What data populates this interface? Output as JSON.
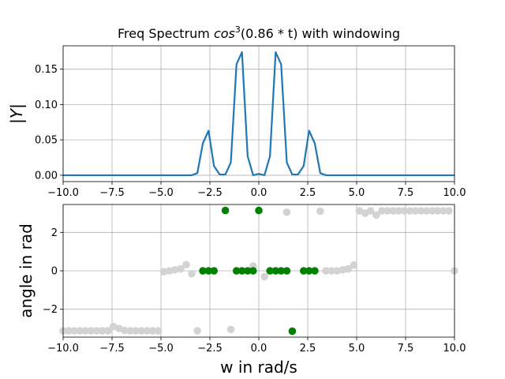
{
  "chart_data": [
    {
      "type": "line",
      "title": "Freq Spectrum cos³(0.86 * t) with windowing",
      "title_parts": {
        "prefix": "Freq Spectrum ",
        "func": "cos",
        "power": "3",
        "arg": "(0.86 * t)",
        "suffix": " with windowing"
      },
      "xlabel": "",
      "ylabel": "|Y|",
      "xlim": [
        -10,
        10
      ],
      "ylim": [
        -0.009,
        0.183
      ],
      "xticks": [
        -10,
        -7.5,
        -5,
        -2.5,
        0,
        2.5,
        5,
        7.5,
        10
      ],
      "xtick_labels": [
        "−10.0",
        "−7.5",
        "−5.0",
        "−2.5",
        "0.0",
        "2.5",
        "5.0",
        "7.5",
        "10.0"
      ],
      "yticks": [
        0,
        0.05,
        0.1,
        0.15
      ],
      "ytick_labels": [
        "0.00",
        "0.05",
        "0.10",
        "0.15"
      ],
      "grid": true,
      "line_color": "#1f77b4",
      "series": [
        {
          "x": [
            -10,
            -3.43,
            -3.14,
            -2.86,
            -2.57,
            -2.29,
            -2.0,
            -1.71,
            -1.43,
            -1.14,
            -0.86,
            -0.57,
            -0.29,
            0.0,
            0.29,
            0.57,
            0.86,
            1.14,
            1.43,
            1.71,
            2.0,
            2.29,
            2.57,
            2.86,
            3.14,
            3.43,
            10
          ],
          "values": [
            0.0,
            0.0,
            0.003,
            0.045,
            0.063,
            0.013,
            0.001,
            0.001,
            0.018,
            0.157,
            0.174,
            0.027,
            0.0,
            0.002,
            0.0,
            0.027,
            0.174,
            0.157,
            0.018,
            0.001,
            0.001,
            0.013,
            0.063,
            0.045,
            0.003,
            0.0,
            0.0
          ]
        }
      ]
    },
    {
      "type": "scatter",
      "title": "",
      "xlabel": "w in rad/s",
      "ylabel": "angle in rad",
      "xlim": [
        -10,
        10
      ],
      "ylim": [
        -3.45,
        3.45
      ],
      "xticks": [
        -10,
        -7.5,
        -5,
        -2.5,
        0,
        2.5,
        5,
        7.5,
        10
      ],
      "xtick_labels": [
        "−10.0",
        "−7.5",
        "−5.0",
        "−2.5",
        "0.0",
        "2.5",
        "5.0",
        "7.5",
        "10.0"
      ],
      "yticks": [
        -2,
        0,
        2
      ],
      "ytick_labels": [
        "−2",
        "0",
        "2"
      ],
      "grid": true,
      "colors": {
        "background_points": "#d3d3d3",
        "highlight_points": "#008000"
      },
      "series": [
        {
          "role": "all_bins",
          "x": [
            -9.71,
            -9.43,
            -9.14,
            -8.86,
            -8.57,
            -8.29,
            -8.0,
            -7.71,
            -7.43,
            -7.14,
            -6.86,
            -6.57,
            -6.29,
            -6.0,
            -5.71,
            -5.43,
            -5.14,
            -4.86,
            -4.57,
            -4.29,
            -4.0,
            -3.71,
            -3.43,
            -3.14,
            -1.43,
            -0.29,
            0.29,
            1.43,
            3.14,
            3.43,
            3.71,
            4.0,
            4.29,
            4.57,
            4.86,
            5.14,
            5.43,
            5.71,
            6.0,
            6.29,
            6.57,
            6.86,
            7.14,
            7.43,
            7.71,
            8.0,
            8.29,
            8.57,
            8.86,
            9.14,
            9.43,
            9.71,
            10.0,
            -10.0
          ],
          "values": [
            -3.12,
            -3.12,
            -3.12,
            -3.12,
            -3.12,
            -3.12,
            -3.12,
            -3.12,
            -2.9,
            -3.0,
            -3.1,
            -3.12,
            -3.12,
            -3.12,
            -3.12,
            -3.12,
            -3.12,
            -0.05,
            0.0,
            0.05,
            0.1,
            0.32,
            -0.15,
            -3.12,
            -3.05,
            0.25,
            -0.3,
            3.05,
            3.1,
            0.0,
            0.0,
            0.0,
            0.05,
            0.1,
            0.3,
            3.12,
            3.0,
            3.12,
            2.9,
            3.12,
            3.12,
            3.12,
            3.12,
            3.12,
            3.12,
            3.12,
            3.12,
            3.12,
            3.12,
            3.12,
            3.12,
            3.12,
            0.0,
            -3.12
          ]
        },
        {
          "role": "significant_bins",
          "x": [
            -2.86,
            -2.57,
            -2.29,
            -1.71,
            -1.14,
            -0.86,
            -0.57,
            -0.29,
            0.0,
            0.57,
            0.86,
            1.14,
            1.43,
            1.71,
            2.29,
            2.57,
            2.86
          ],
          "values": [
            0.0,
            0.0,
            0.0,
            3.14,
            0.0,
            0.0,
            0.0,
            0.0,
            3.14,
            0.0,
            0.0,
            0.0,
            0.0,
            -3.14,
            0.0,
            0.0,
            0.0
          ]
        }
      ]
    }
  ]
}
